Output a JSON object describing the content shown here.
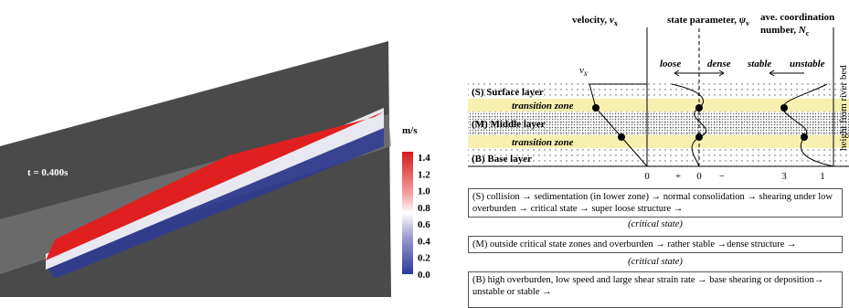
{
  "snapshot": {
    "time_label": "t = 0.400s",
    "unit": "m/s",
    "scale_labels": [
      "1.4",
      "1.2",
      "1.0",
      "0.8",
      "0.6",
      "0.4",
      "0.2",
      "0.0"
    ]
  },
  "schematic": {
    "headers": {
      "velocity": {
        "main": "velocity, ",
        "var": "v",
        "sub": "x"
      },
      "state": {
        "main": "state parameter, ",
        "var": "ψ",
        "sub": "v"
      },
      "coordination": {
        "line1": "ave. coordination",
        "main": "number, ",
        "var": "N",
        "sub": "c"
      }
    },
    "profile_label": {
      "var": "v",
      "sub": "x"
    },
    "loose": "loose",
    "dense": "dense",
    "stable": "stable",
    "unstable": "unstable",
    "height_axis": "height from river bed",
    "layers": [
      "(S) Surface layer",
      "transition zone",
      "(M) Middle layer",
      "transition zone",
      "(B) Base layer"
    ],
    "axis_marks": [
      "0",
      "+",
      "0",
      "−",
      "3",
      "1"
    ]
  },
  "descriptions": [
    "(S) collision → sedimentation (in lower zone) → normal consolidation → shearing under low overburden → critical state → super loose structure →",
    "(critical state)",
    "(M) outside critical state zones and overburden → rather stable →dense structure →",
    "(critical state)",
    "(B) high overburden, low speed and large shear strain rate → base shearing or deposition→ unstable or stable →"
  ]
}
